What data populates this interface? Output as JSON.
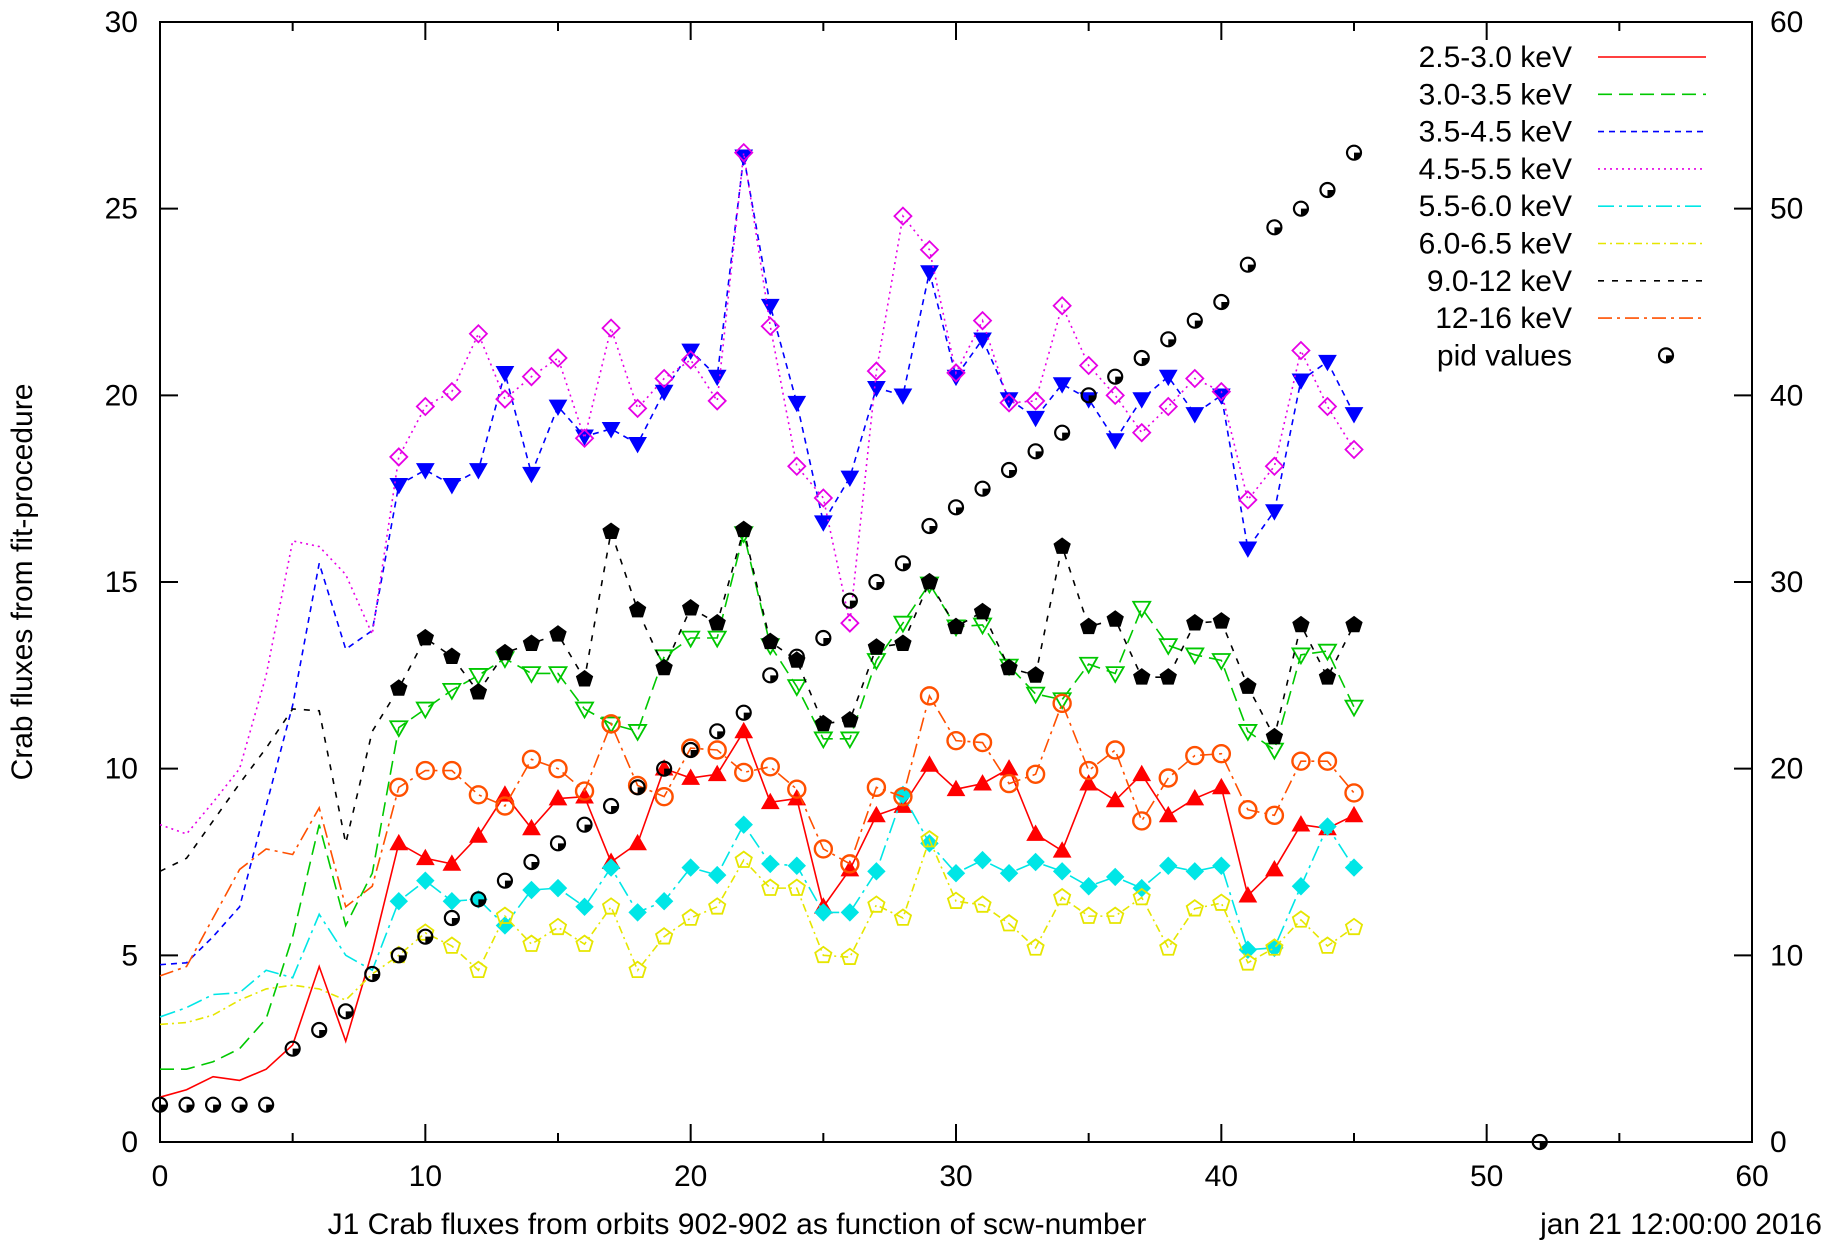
{
  "chart_data": {
    "type": "line",
    "title": "",
    "xlabel": "J1 Crab fluxes from orbits 902-902 as function of scw-number",
    "ylabel": "Crab fluxes from fit-procedure",
    "footer_text": "jan 21 12:00:00 2016",
    "xlim": [
      0,
      60
    ],
    "ylim": [
      0,
      30
    ],
    "y2lim": [
      0,
      60
    ],
    "x_ticks": [
      "0",
      "10",
      "20",
      "30",
      "40",
      "50",
      "60"
    ],
    "y_ticks": [
      "0",
      "5",
      "10",
      "15",
      "20",
      "25",
      "30"
    ],
    "y2_ticks": [
      "0",
      "10",
      "20",
      "30",
      "40",
      "50",
      "60"
    ],
    "grid": false,
    "legend_position": "top-right",
    "series": [
      {
        "name": "2.5-3.0 keV",
        "color": "#ff0000",
        "dash": "",
        "marker": "triangle-up",
        "marker_fill": true,
        "x": [
          0,
          1,
          2,
          3,
          4,
          5,
          6,
          7,
          8,
          9,
          10,
          11,
          12,
          13,
          14,
          15,
          16,
          17,
          18,
          19,
          20,
          21,
          22,
          23,
          24,
          25,
          26,
          27,
          28,
          29,
          30,
          31,
          32,
          33,
          34,
          35,
          36,
          37,
          38,
          39,
          40,
          41,
          42,
          43,
          44,
          45
        ],
        "y": [
          1.2,
          1.4,
          1.75,
          1.65,
          1.95,
          2.6,
          4.7,
          2.7,
          5.1,
          8.0,
          7.6,
          7.45,
          8.2,
          9.3,
          8.4,
          9.2,
          9.25,
          7.5,
          8.0,
          10.0,
          9.75,
          9.85,
          11.0,
          9.1,
          9.2,
          6.3,
          7.3,
          8.75,
          9.0,
          10.1,
          9.45,
          9.6,
          10.0,
          8.25,
          7.8,
          9.6,
          9.15,
          9.85,
          8.75,
          9.2,
          9.5,
          6.6,
          7.3,
          8.5,
          8.4,
          8.75
        ],
        "marker_from": 9
      },
      {
        "name": "3.0-3.5 keV",
        "color": "#00c800",
        "dash": "14,7",
        "marker": "triangle-down-open",
        "marker_fill": false,
        "x": [
          0,
          1,
          2,
          3,
          4,
          5,
          6,
          7,
          8,
          9,
          10,
          11,
          12,
          13,
          14,
          15,
          16,
          17,
          18,
          19,
          20,
          21,
          22,
          23,
          24,
          25,
          26,
          27,
          28,
          29,
          30,
          31,
          32,
          33,
          34,
          35,
          36,
          37,
          38,
          39,
          40,
          41,
          42,
          43,
          44,
          45
        ],
        "y": [
          1.95,
          1.95,
          2.15,
          2.5,
          3.3,
          5.5,
          8.5,
          5.8,
          7.2,
          11.1,
          11.6,
          12.1,
          12.5,
          12.95,
          12.55,
          12.55,
          11.6,
          11.2,
          11.0,
          13.0,
          13.5,
          13.5,
          16.3,
          13.3,
          12.2,
          10.8,
          10.8,
          12.9,
          13.9,
          14.95,
          13.8,
          13.85,
          12.75,
          12.0,
          11.85,
          12.8,
          12.55,
          14.3,
          13.3,
          13.05,
          12.9,
          11.0,
          10.5,
          13.05,
          13.15,
          11.65
        ],
        "marker_from": 9
      },
      {
        "name": "3.5-4.5 keV",
        "color": "#0000ff",
        "dash": "6,5",
        "marker": "triangle-down",
        "marker_fill": true,
        "x": [
          0,
          1,
          2,
          3,
          4,
          5,
          6,
          7,
          8,
          9,
          10,
          11,
          12,
          13,
          14,
          15,
          16,
          17,
          18,
          19,
          20,
          21,
          22,
          23,
          24,
          25,
          26,
          27,
          28,
          29,
          30,
          31,
          32,
          33,
          34,
          35,
          36,
          37,
          38,
          39,
          40,
          41,
          42,
          43,
          44,
          45
        ],
        "y": [
          4.75,
          4.8,
          5.5,
          6.3,
          9.0,
          11.7,
          15.5,
          13.2,
          13.7,
          17.6,
          18.0,
          17.6,
          18.0,
          20.6,
          17.9,
          19.7,
          18.9,
          19.1,
          18.7,
          20.1,
          21.2,
          20.5,
          26.4,
          22.4,
          19.8,
          16.6,
          17.8,
          20.2,
          20.0,
          23.3,
          20.5,
          21.5,
          19.9,
          19.4,
          20.3,
          19.9,
          18.8,
          19.9,
          20.5,
          19.5,
          20.0,
          15.9,
          16.9,
          20.4,
          20.9,
          19.5
        ],
        "marker_from": 9
      },
      {
        "name": "4.5-5.5 keV",
        "color": "#e600e6",
        "dash": "2,4",
        "marker": "diamond-open",
        "marker_fill": false,
        "x": [
          0,
          1,
          2,
          3,
          4,
          5,
          6,
          7,
          8,
          9,
          10,
          11,
          12,
          13,
          14,
          15,
          16,
          17,
          18,
          19,
          20,
          21,
          22,
          23,
          24,
          25,
          26,
          27,
          28,
          29,
          30,
          31,
          32,
          33,
          34,
          35,
          36,
          37,
          38,
          39,
          40,
          41,
          42,
          43,
          44,
          45
        ],
        "y": [
          8.5,
          8.25,
          9.1,
          10.0,
          12.5,
          16.1,
          15.95,
          15.2,
          13.6,
          18.35,
          19.7,
          20.1,
          21.65,
          19.9,
          20.5,
          21.0,
          18.85,
          21.8,
          19.65,
          20.45,
          20.95,
          19.85,
          26.5,
          21.85,
          18.1,
          17.25,
          13.9,
          20.65,
          24.8,
          23.9,
          20.6,
          22.0,
          19.8,
          19.85,
          22.4,
          20.8,
          20.0,
          19.0,
          19.7,
          20.45,
          20.1,
          17.2,
          18.1,
          21.2,
          19.7,
          18.55
        ],
        "marker_from": 9
      },
      {
        "name": "5.5-6.0 keV",
        "color": "#00e6e6",
        "dash": "16,5,3,5",
        "marker": "diamond",
        "marker_fill": true,
        "x": [
          0,
          1,
          2,
          3,
          4,
          5,
          6,
          7,
          8,
          9,
          10,
          11,
          12,
          13,
          14,
          15,
          16,
          17,
          18,
          19,
          20,
          21,
          22,
          23,
          24,
          25,
          26,
          27,
          28,
          29,
          30,
          31,
          32,
          33,
          34,
          35,
          36,
          37,
          38,
          39,
          40,
          41,
          42,
          43,
          44,
          45
        ],
        "y": [
          3.35,
          3.6,
          3.95,
          4.0,
          4.6,
          4.4,
          6.1,
          5.0,
          4.6,
          6.45,
          7.0,
          6.45,
          6.5,
          5.8,
          6.75,
          6.8,
          6.3,
          7.35,
          6.15,
          6.45,
          7.35,
          7.15,
          8.5,
          7.45,
          7.4,
          6.15,
          6.15,
          7.25,
          9.3,
          8.0,
          7.2,
          7.55,
          7.2,
          7.5,
          7.25,
          6.85,
          7.1,
          6.8,
          7.4,
          7.25,
          7.4,
          5.15,
          5.2,
          6.85,
          8.45,
          7.35
        ],
        "marker_from": 9
      },
      {
        "name": "6.0-6.5 keV",
        "color": "#e6e600",
        "dash": "8,4,2,4",
        "marker": "pentagon-open",
        "marker_fill": false,
        "x": [
          0,
          1,
          2,
          3,
          4,
          5,
          6,
          7,
          8,
          9,
          10,
          11,
          12,
          13,
          14,
          15,
          16,
          17,
          18,
          19,
          20,
          21,
          22,
          23,
          24,
          25,
          26,
          27,
          28,
          29,
          30,
          31,
          32,
          33,
          34,
          35,
          36,
          37,
          38,
          39,
          40,
          41,
          42,
          43,
          44,
          45
        ],
        "y": [
          3.15,
          3.2,
          3.4,
          3.8,
          4.1,
          4.2,
          4.1,
          3.8,
          4.5,
          5.0,
          5.6,
          5.25,
          4.6,
          6.05,
          5.3,
          5.75,
          5.3,
          6.3,
          4.6,
          5.5,
          6.0,
          6.3,
          7.55,
          6.8,
          6.8,
          5.0,
          4.95,
          6.35,
          6.0,
          8.1,
          6.45,
          6.35,
          5.85,
          5.2,
          6.55,
          6.05,
          6.05,
          6.55,
          5.2,
          6.25,
          6.4,
          4.8,
          5.2,
          5.95,
          5.25,
          5.75
        ],
        "marker_from": 9
      },
      {
        "name": "9.0-12  keV",
        "color": "#000000",
        "dash": "6,8",
        "marker": "pentagon",
        "marker_fill": true,
        "x": [
          0,
          1,
          2,
          3,
          4,
          5,
          6,
          7,
          8,
          9,
          10,
          11,
          12,
          13,
          14,
          15,
          16,
          17,
          18,
          19,
          20,
          21,
          22,
          23,
          24,
          25,
          26,
          27,
          28,
          29,
          30,
          31,
          32,
          33,
          34,
          35,
          36,
          37,
          38,
          39,
          40,
          41,
          42,
          43,
          44,
          45
        ],
        "y": [
          7.25,
          7.6,
          8.6,
          9.6,
          10.55,
          11.6,
          11.55,
          8.0,
          11.0,
          12.15,
          13.5,
          13.0,
          12.05,
          13.1,
          13.35,
          13.6,
          12.4,
          16.35,
          14.25,
          12.7,
          14.3,
          13.9,
          16.4,
          13.4,
          12.9,
          11.2,
          11.3,
          13.25,
          13.35,
          15.0,
          13.8,
          14.2,
          12.7,
          12.5,
          15.95,
          13.8,
          14.0,
          12.45,
          12.45,
          13.9,
          13.95,
          12.2,
          10.85,
          13.85,
          12.45,
          13.85
        ],
        "marker_from": 9
      },
      {
        "name": "12-16 keV",
        "color": "#ff5000",
        "dash": "14,5,3,5",
        "marker": "circle-open",
        "marker_fill": false,
        "x": [
          0,
          1,
          2,
          3,
          4,
          5,
          6,
          7,
          8,
          9,
          10,
          11,
          12,
          13,
          14,
          15,
          16,
          17,
          18,
          19,
          20,
          21,
          22,
          23,
          24,
          25,
          26,
          27,
          28,
          29,
          30,
          31,
          32,
          33,
          34,
          35,
          36,
          37,
          38,
          39,
          40,
          41,
          42,
          43,
          44,
          45
        ],
        "y": [
          4.45,
          4.7,
          6.0,
          7.3,
          7.85,
          7.7,
          8.95,
          6.3,
          6.85,
          9.5,
          9.95,
          9.95,
          9.3,
          9.0,
          10.25,
          10.0,
          9.4,
          11.2,
          9.55,
          9.25,
          10.55,
          10.5,
          9.9,
          10.05,
          9.45,
          7.85,
          7.45,
          9.5,
          9.25,
          11.95,
          10.75,
          10.7,
          9.6,
          9.85,
          11.75,
          9.95,
          10.5,
          8.6,
          9.75,
          10.35,
          10.4,
          8.9,
          8.75,
          10.2,
          10.2,
          9.35
        ],
        "marker_from": 9
      },
      {
        "name": "pid values",
        "color": "#000000",
        "dash": "none",
        "marker": "pid-circle",
        "marker_fill": false,
        "axis": "y2",
        "x": [
          0,
          1,
          2,
          3,
          4,
          5,
          6,
          7,
          8,
          9,
          10,
          11,
          12,
          13,
          14,
          15,
          16,
          17,
          18,
          19,
          20,
          21,
          22,
          23,
          24,
          25,
          26,
          27,
          28,
          29,
          30,
          31,
          32,
          33,
          34,
          35,
          36,
          37,
          38,
          39,
          40,
          41,
          42,
          43,
          44,
          45,
          52
        ],
        "y": [
          2,
          2,
          2,
          2,
          2,
          5,
          6,
          7,
          9,
          10,
          11,
          12,
          13,
          14,
          15,
          16,
          17,
          18,
          19,
          20,
          21,
          22,
          23,
          25,
          26,
          27,
          29,
          30,
          31,
          33,
          34,
          35,
          36,
          37,
          38,
          40,
          41,
          42,
          43,
          44,
          45,
          47,
          49,
          50,
          51,
          53,
          0
        ],
        "marker_from": 0
      }
    ]
  }
}
